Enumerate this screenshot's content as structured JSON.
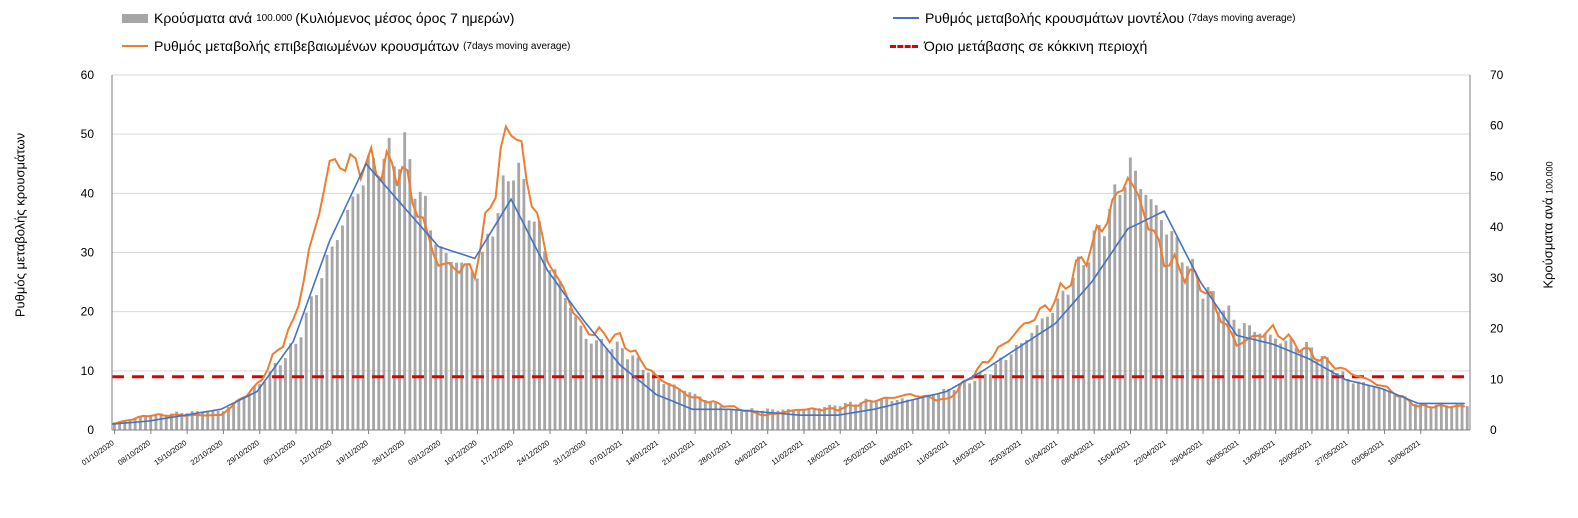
{
  "legend": {
    "bars": {
      "main": "Κρούσματα ανά",
      "small": "100.000",
      "rest": "(Κυλιόμενος μέσος όρος 7 ημερών)"
    },
    "model": {
      "main": "Ρυθμός μεταβολής κρουσμάτων μοντέλου",
      "small": "(7days moving average)"
    },
    "confirmed": {
      "main": "Ρυθμός μεταβολής επιβεβαιωμένων κρουσμάτων",
      "small": "(7days moving average)"
    },
    "threshold": {
      "main": "Όριο μετάβασης σε κόκκινη περιοχή"
    }
  },
  "chart_data": {
    "type": "bar+line",
    "ylabel_left": "Ρυθμός μεταβολής κρουσμάτων",
    "ylabel_right_main": "Κρούσματα ανά",
    "ylabel_right_small": "100.000",
    "ylim_left": [
      0,
      60
    ],
    "ylim_right": [
      0,
      70
    ],
    "yticks_left": [
      0,
      10,
      20,
      30,
      40,
      50,
      60
    ],
    "yticks_right": [
      0,
      10,
      20,
      30,
      40,
      50,
      60,
      70
    ],
    "x_tick_labels": [
      "01/10/2020",
      "08/10/2020",
      "15/10/2020",
      "22/10/2020",
      "29/10/2020",
      "05/11/2020",
      "12/11/2020",
      "19/11/2020",
      "26/11/2020",
      "03/12/2020",
      "10/12/2020",
      "17/12/2020",
      "24/12/2020",
      "31/12/2020",
      "07/01/2021",
      "14/01/2021",
      "21/01/2021",
      "28/01/2021",
      "04/02/2021",
      "11/02/2021",
      "18/02/2021",
      "25/02/2021",
      "04/03/2021",
      "11/03/2021",
      "18/03/2021",
      "25/03/2021",
      "01/04/2021",
      "08/04/2021",
      "15/04/2021",
      "22/04/2021",
      "29/04/2021",
      "06/05/2021",
      "13/05/2021",
      "20/05/2021",
      "27/05/2021",
      "03/06/2021",
      "10/06/2021"
    ],
    "threshold_left": 9,
    "bars_weekly_right_axis": [
      1.5,
      3,
      3.5,
      3.8,
      9,
      17,
      36,
      52,
      55,
      35,
      31,
      53,
      33,
      18,
      16,
      10,
      7,
      4,
      4,
      4,
      5,
      6,
      6,
      8,
      11,
      17,
      25,
      37,
      52,
      40,
      28,
      21,
      18,
      16,
      10,
      8,
      5
    ],
    "confirmed_weekly_left_axis": [
      1,
      2.5,
      2.5,
      2.5,
      7.5,
      18,
      45,
      45,
      44,
      28,
      27,
      53,
      29,
      17,
      15.5,
      9,
      5.5,
      4,
      2.5,
      3.5,
      3.5,
      5,
      6,
      5,
      11,
      17,
      22,
      31,
      43,
      29,
      25,
      14.5,
      17,
      13,
      10,
      7.5,
      4
    ],
    "model_weekly_left_axis": [
      1,
      1.5,
      2.5,
      3.5,
      6.5,
      15,
      32,
      45,
      38,
      31,
      29,
      39,
      27,
      18.5,
      11,
      6,
      3.5,
      3.5,
      3,
      2.5,
      2.5,
      3.5,
      5,
      6.5,
      10,
      14,
      18,
      25,
      34,
      37,
      25,
      16,
      14.5,
      12,
      8.5,
      7,
      4.5
    ]
  }
}
